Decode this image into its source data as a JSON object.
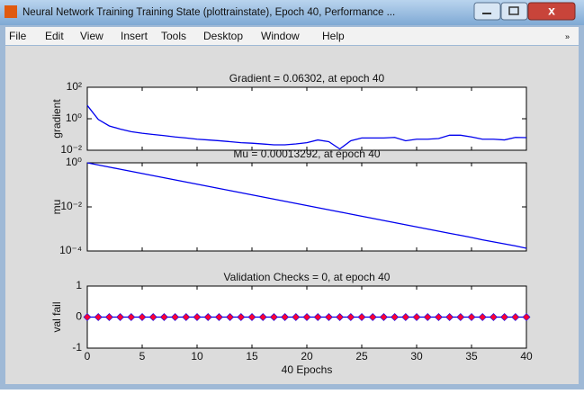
{
  "window": {
    "title": "Neural Network Training Training State (plottrainstate), Epoch 40, Performance ...",
    "menu": [
      "File",
      "Edit",
      "View",
      "Insert",
      "Tools",
      "Desktop",
      "Window",
      "Help"
    ]
  },
  "chart_data": [
    {
      "type": "line",
      "title": "Gradient = 0.06302, at epoch 40",
      "ylabel": "gradient",
      "color": "#0000ee",
      "log_y": true,
      "x": [
        0,
        1,
        2,
        3,
        4,
        5,
        6,
        7,
        8,
        9,
        10,
        11,
        12,
        13,
        14,
        15,
        16,
        17,
        18,
        19,
        20,
        21,
        22,
        23,
        24,
        25,
        26,
        27,
        28,
        29,
        30,
        31,
        32,
        33,
        34,
        35,
        36,
        37,
        38,
        39,
        40
      ],
      "values": [
        7,
        0.9,
        0.35,
        0.22,
        0.15,
        0.12,
        0.1,
        0.085,
        0.07,
        0.06,
        0.05,
        0.045,
        0.04,
        0.035,
        0.03,
        0.028,
        0.025,
        0.022,
        0.022,
        0.025,
        0.03,
        0.045,
        0.035,
        0.012,
        0.04,
        0.06,
        0.06,
        0.06,
        0.065,
        0.04,
        0.05,
        0.05,
        0.055,
        0.09,
        0.09,
        0.07,
        0.05,
        0.05,
        0.045,
        0.065,
        0.06302
      ],
      "xlim": [
        0,
        40
      ],
      "xticks": [
        0,
        5,
        10,
        15,
        20,
        25,
        30,
        35,
        40
      ],
      "ylim": [
        0.01,
        100
      ],
      "yticks": [
        {
          "value": 0.01,
          "label": "10⁻²"
        },
        {
          "value": 1,
          "label": "10⁰"
        },
        {
          "value": 100,
          "label": "10²"
        }
      ]
    },
    {
      "type": "line",
      "title": "Mu = 0.00013292, at epoch 40",
      "ylabel": "mu",
      "color": "#0000ee",
      "log_y": true,
      "x": [
        0,
        1,
        2,
        3,
        4,
        5,
        6,
        7,
        8,
        9,
        10,
        11,
        12,
        13,
        14,
        15,
        16,
        17,
        18,
        19,
        20,
        21,
        22,
        23,
        24,
        25,
        26,
        27,
        28,
        29,
        30,
        31,
        32,
        33,
        34,
        35,
        36,
        37,
        38,
        39,
        40
      ],
      "values": [
        1,
        0.8,
        0.64,
        0.512,
        0.41,
        0.328,
        0.262,
        0.21,
        0.168,
        0.134,
        0.107,
        0.0859,
        0.0687,
        0.055,
        0.044,
        0.0352,
        0.0281,
        0.0225,
        0.018,
        0.0144,
        0.0115,
        0.00922,
        0.00738,
        0.0059,
        0.00472,
        0.00378,
        0.00302,
        0.00242,
        0.00193,
        0.00155,
        0.00124,
        0.00099,
        0.00079,
        0.00063,
        0.00051,
        0.00041,
        0.00032,
        0.00026,
        0.00021,
        0.00017,
        0.00013292
      ],
      "xlim": [
        0,
        40
      ],
      "xticks": [
        0,
        5,
        10,
        15,
        20,
        25,
        30,
        35,
        40
      ],
      "ylim": [
        0.0001,
        1
      ],
      "yticks": [
        {
          "value": 0.0001,
          "label": "10⁻⁴"
        },
        {
          "value": 0.01,
          "label": "10⁻²"
        },
        {
          "value": 1,
          "label": "10⁰"
        }
      ]
    },
    {
      "type": "line",
      "title": "Validation Checks = 0, at epoch 40",
      "ylabel": "val fail",
      "xlabel": "40 Epochs",
      "color": "#0000ee",
      "marker": "diamond",
      "marker_color": "#ff0033",
      "x": [
        0,
        1,
        2,
        3,
        4,
        5,
        6,
        7,
        8,
        9,
        10,
        11,
        12,
        13,
        14,
        15,
        16,
        17,
        18,
        19,
        20,
        21,
        22,
        23,
        24,
        25,
        26,
        27,
        28,
        29,
        30,
        31,
        32,
        33,
        34,
        35,
        36,
        37,
        38,
        39,
        40
      ],
      "values": [
        0,
        0,
        0,
        0,
        0,
        0,
        0,
        0,
        0,
        0,
        0,
        0,
        0,
        0,
        0,
        0,
        0,
        0,
        0,
        0,
        0,
        0,
        0,
        0,
        0,
        0,
        0,
        0,
        0,
        0,
        0,
        0,
        0,
        0,
        0,
        0,
        0,
        0,
        0,
        0,
        0
      ],
      "xlim": [
        0,
        40
      ],
      "xticks": [
        0,
        5,
        10,
        15,
        20,
        25,
        30,
        35,
        40
      ],
      "ylim": [
        -1,
        1
      ],
      "yticks": [
        -1,
        0,
        1
      ]
    }
  ]
}
